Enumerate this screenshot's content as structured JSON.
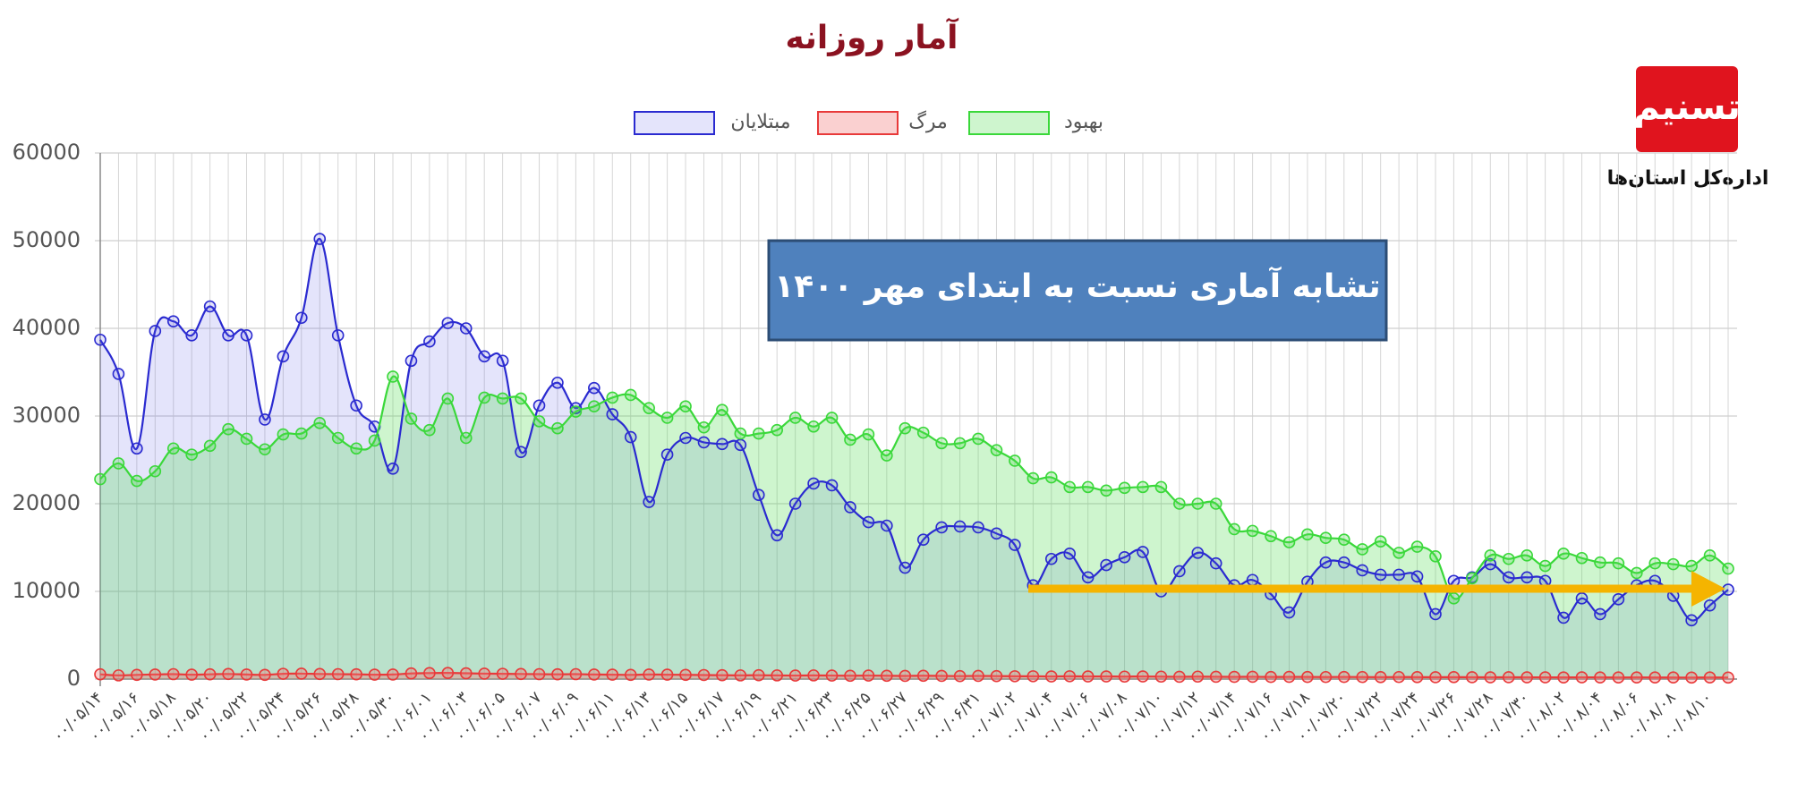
{
  "chart_data": {
    "type": "line",
    "title": "آمار روزانه",
    "annotation": "تشابه آماری نسبت به ابتدای مهر ۱۴۰۰",
    "logo_caption": "اداره‌کل استان‌ها",
    "categories": [
      "۰۰/۰۵/۱۴",
      null,
      "۰۰/۰۵/۱۶",
      null,
      "۰۰/۰۵/۱۸",
      null,
      "۰۰/۰۵/۲۰",
      null,
      "۰۰/۰۵/۲۲",
      null,
      "۰۰/۰۵/۲۴",
      null,
      "۰۰/۰۵/۲۶",
      null,
      "۰۰/۰۵/۲۸",
      null,
      "۰۰/۰۵/۳۰",
      null,
      "۰۰/۰۶/۰۱",
      null,
      "۰۰/۰۶/۰۳",
      null,
      "۰۰/۰۶/۰۵",
      null,
      "۰۰/۰۶/۰۷",
      null,
      "۰۰/۰۶/۰۹",
      null,
      "۰۰/۰۶/۱۱",
      null,
      "۰۰/۰۶/۱۳",
      null,
      "۰۰/۰۶/۱۵",
      null,
      "۰۰/۰۶/۱۷",
      null,
      "۰۰/۰۶/۱۹",
      null,
      "۰۰/۰۶/۲۱",
      null,
      "۰۰/۰۶/۲۳",
      null,
      "۰۰/۰۶/۲۵",
      null,
      "۰۰/۰۶/۲۷",
      null,
      "۰۰/۰۶/۲۹",
      null,
      "۰۰/۰۶/۳۱",
      null,
      "۰۰/۰۷/۰۲",
      null,
      "۰۰/۰۷/۰۴",
      null,
      "۰۰/۰۷/۰۶",
      null,
      "۰۰/۰۷/۰۸",
      null,
      "۰۰/۰۷/۱۰",
      null,
      "۰۰/۰۷/۱۲",
      null,
      "۰۰/۰۷/۱۴",
      null,
      "۰۰/۰۷/۱۶",
      null,
      "۰۰/۰۷/۱۸",
      null,
      "۰۰/۰۷/۲۰",
      null,
      "۰۰/۰۷/۲۲",
      null,
      "۰۰/۰۷/۲۴",
      null,
      "۰۰/۰۷/۲۶",
      null,
      "۰۰/۰۷/۲۸",
      null,
      "۰۰/۰۷/۳۰",
      null,
      "۰۰/۰۸/۰۲",
      null,
      "۰۰/۰۸/۰۴",
      null,
      "۰۰/۰۸/۰۶",
      null,
      "۰۰/۰۸/۰۸",
      null,
      "۰۰/۰۸/۱۰",
      null
    ],
    "series": [
      {
        "name": "مبتلایان",
        "color": "#2a2ad0",
        "fill": "rgba(90,90,230,0.16)",
        "values": [
          38700,
          34800,
          26300,
          39700,
          40800,
          39200,
          42500,
          39200,
          39200,
          29600,
          36800,
          41200,
          50200,
          39200,
          31200,
          28800,
          24000,
          36300,
          38500,
          40600,
          40000,
          36800,
          36300,
          25900,
          31200,
          33800,
          30900,
          33200,
          30200,
          27600,
          20200,
          25600,
          27500,
          27000,
          26800,
          26700,
          21000,
          16400,
          20000,
          22300,
          22100,
          19600,
          17900,
          17500,
          12700,
          15900,
          17300,
          17400,
          17300,
          16600,
          15300,
          10700,
          13700,
          14300,
          11600,
          13000,
          13900,
          14500,
          10000,
          12300,
          14400,
          13200,
          10700,
          11300,
          9700,
          7600,
          11100,
          13300,
          13300,
          12400,
          11900,
          11900,
          11700,
          7400,
          11200,
          11600,
          13100,
          11600,
          11600,
          11200,
          7000,
          9200,
          7400,
          9100,
          10700,
          11200,
          9500,
          6700,
          8400,
          10200
        ]
      },
      {
        "name": "مرگ",
        "color": "#e83a3a",
        "fill": "rgba(240,120,120,0.35)",
        "values": [
          540,
          420,
          480,
          520,
          560,
          500,
          540,
          580,
          520,
          480,
          600,
          620,
          580,
          560,
          540,
          500,
          520,
          640,
          680,
          700,
          660,
          620,
          600,
          580,
          560,
          540,
          560,
          520,
          500,
          480,
          520,
          500,
          480,
          460,
          440,
          420,
          440,
          420,
          400,
          420,
          400,
          380,
          400,
          380,
          360,
          380,
          360,
          340,
          360,
          340,
          320,
          320,
          300,
          320,
          300,
          300,
          280,
          300,
          280,
          260,
          280,
          260,
          250,
          260,
          240,
          250,
          240,
          230,
          240,
          230,
          220,
          230,
          220,
          210,
          220,
          210,
          200,
          210,
          200,
          200,
          190,
          200,
          190,
          180,
          190,
          180,
          180,
          170,
          180,
          170
        ]
      },
      {
        "name": "بهبود",
        "color": "#3ad83a",
        "fill": "rgba(80,220,80,0.28)",
        "values": [
          22800,
          24600,
          22600,
          23700,
          26300,
          25600,
          26600,
          28500,
          27400,
          26200,
          27900,
          28000,
          29200,
          27500,
          26300,
          27200,
          34500,
          29700,
          28400,
          32000,
          27500,
          32100,
          32000,
          32000,
          29400,
          28600,
          30500,
          31100,
          32100,
          32400,
          30900,
          29800,
          31100,
          28700,
          30700,
          28000,
          28000,
          28400,
          29800,
          28800,
          29800,
          27300,
          27900,
          25500,
          28600,
          28100,
          26900,
          26900,
          27400,
          26100,
          24900,
          22900,
          23000,
          21900,
          21900,
          21500,
          21800,
          21900,
          21900,
          20000,
          20000,
          20000,
          17100,
          16900,
          16300,
          15600,
          16500,
          16100,
          15900,
          14800,
          15700,
          14400,
          15100,
          14000,
          9200,
          11500,
          14100,
          13700,
          14100,
          12900,
          14300,
          13800,
          13300,
          13200,
          12100,
          13200,
          13100,
          12900,
          14100,
          12600
        ]
      }
    ],
    "ylim": [
      0,
      60000
    ],
    "yticks": [
      0,
      10000,
      20000,
      30000,
      40000,
      50000,
      60000
    ],
    "grid": true
  }
}
